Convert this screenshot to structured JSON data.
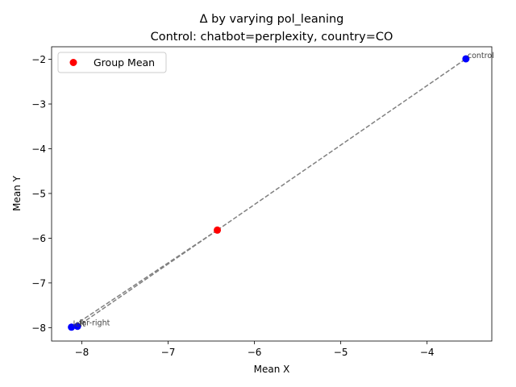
{
  "chart_data": {
    "type": "scatter",
    "title": "Δ by varying pol_leaning",
    "subtitle": "Control: chatbot=perplexity, country=CO",
    "xlabel": "Mean X",
    "ylabel": "Mean Y",
    "xlim": [
      -8.35,
      -3.25
    ],
    "ylim": [
      -8.3,
      -1.72
    ],
    "xticks": [
      -8,
      -7,
      -6,
      -5,
      -4
    ],
    "yticks": [
      -8,
      -7,
      -6,
      -5,
      -4,
      -3,
      -2
    ],
    "xtick_labels": [
      "−8",
      "−7",
      "−6",
      "−5",
      "−4"
    ],
    "ytick_labels": [
      "−8",
      "−7",
      "−6",
      "−5",
      "−4",
      "−3",
      "−2"
    ],
    "grid": false,
    "legend": {
      "position": "top-left",
      "entries": [
        {
          "label": "Group Mean",
          "color": "#ff0000"
        }
      ]
    },
    "points": [
      {
        "label": "control",
        "x": -3.55,
        "y": -1.99,
        "color": "#0000ff"
      },
      {
        "label": "far-right",
        "x": -8.05,
        "y": -7.97,
        "color": "#0000ff"
      },
      {
        "label": "left",
        "x": -8.12,
        "y": -7.99,
        "color": "#0000ff"
      }
    ],
    "group_mean": {
      "x": -6.43,
      "y": -5.82,
      "color": "#ff0000"
    },
    "connector_color": "#808080"
  }
}
